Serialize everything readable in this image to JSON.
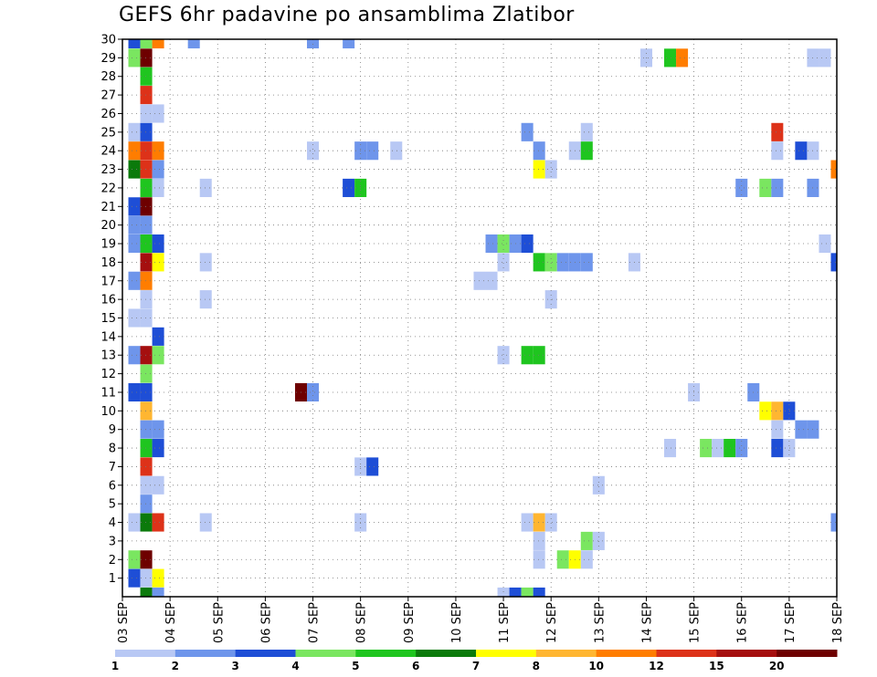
{
  "chart_data": {
    "type": "heatmap",
    "title": "GEFS 6hr padavine po ansamblima Zlatibor",
    "xlabel": "",
    "ylabel": "",
    "x_ticks": [
      "03 SEP",
      "04 SEP",
      "05 SEP",
      "06 SEP",
      "07 SEP",
      "08 SEP",
      "09 SEP",
      "10 SEP",
      "11 SEP",
      "12 SEP",
      "13 SEP",
      "14 SEP",
      "15 SEP",
      "16 SEP",
      "17 SEP",
      "18 SEP"
    ],
    "y_ticks": [
      1,
      2,
      3,
      4,
      5,
      6,
      7,
      8,
      9,
      10,
      11,
      12,
      13,
      14,
      15,
      16,
      17,
      18,
      19,
      20,
      21,
      22,
      23,
      24,
      25,
      26,
      27,
      28,
      29,
      30
    ],
    "xlim": [
      0,
      60
    ],
    "ylim": [
      0,
      30
    ],
    "grid": true,
    "colorbar": {
      "levels": [
        "1",
        "2",
        "3",
        "4",
        "5",
        "6",
        "7",
        "8",
        "10",
        "12",
        "15",
        "20"
      ],
      "colors": [
        "#b8c8f4",
        "#6e95eb",
        "#1e4ed6",
        "#7ae660",
        "#1fc51f",
        "#0b7a0b",
        "#ffff00",
        "#ffb631",
        "#ff7d00",
        "#dd3219",
        "#a50f0f",
        "#6e0000"
      ]
    },
    "cells": [
      [
        30,
        1,
        3
      ],
      [
        30,
        2,
        4
      ],
      [
        30,
        3,
        9
      ],
      [
        30,
        6,
        2
      ],
      [
        30,
        16,
        2
      ],
      [
        30,
        19,
        2
      ],
      [
        29,
        1,
        4
      ],
      [
        29,
        2,
        12
      ],
      [
        29,
        44,
        1
      ],
      [
        29,
        46,
        5
      ],
      [
        29,
        47,
        9
      ],
      [
        29,
        58,
        1
      ],
      [
        29,
        59,
        1
      ],
      [
        28,
        2,
        5
      ],
      [
        27,
        2,
        10
      ],
      [
        26,
        2,
        1
      ],
      [
        26,
        3,
        1
      ],
      [
        25,
        1,
        1
      ],
      [
        25,
        2,
        3
      ],
      [
        25,
        34,
        2
      ],
      [
        25,
        39,
        1
      ],
      [
        25,
        55,
        10
      ],
      [
        24,
        1,
        9
      ],
      [
        24,
        2,
        10
      ],
      [
        24,
        3,
        9
      ],
      [
        24,
        16,
        1
      ],
      [
        24,
        20,
        2
      ],
      [
        24,
        21,
        2
      ],
      [
        24,
        23,
        1
      ],
      [
        24,
        35,
        2
      ],
      [
        24,
        38,
        1
      ],
      [
        24,
        39,
        5
      ],
      [
        24,
        55,
        1
      ],
      [
        24,
        57,
        3
      ],
      [
        24,
        58,
        1
      ],
      [
        23,
        1,
        6
      ],
      [
        23,
        2,
        10
      ],
      [
        23,
        3,
        2
      ],
      [
        23,
        35,
        7
      ],
      [
        23,
        36,
        1
      ],
      [
        23,
        60,
        9
      ],
      [
        22,
        2,
        5
      ],
      [
        22,
        3,
        1
      ],
      [
        22,
        7,
        1
      ],
      [
        22,
        19,
        3
      ],
      [
        22,
        20,
        5
      ],
      [
        22,
        52,
        2
      ],
      [
        22,
        54,
        4
      ],
      [
        22,
        55,
        2
      ],
      [
        22,
        58,
        2
      ],
      [
        21,
        1,
        3
      ],
      [
        21,
        2,
        12
      ],
      [
        20,
        1,
        2
      ],
      [
        20,
        2,
        2
      ],
      [
        19,
        1,
        2
      ],
      [
        19,
        2,
        5
      ],
      [
        19,
        3,
        3
      ],
      [
        19,
        31,
        2
      ],
      [
        19,
        32,
        4
      ],
      [
        19,
        33,
        2
      ],
      [
        19,
        34,
        3
      ],
      [
        19,
        59,
        1
      ],
      [
        18,
        2,
        11
      ],
      [
        18,
        3,
        7
      ],
      [
        18,
        7,
        1
      ],
      [
        18,
        32,
        1
      ],
      [
        18,
        35,
        5
      ],
      [
        18,
        36,
        4
      ],
      [
        18,
        37,
        2
      ],
      [
        18,
        38,
        2
      ],
      [
        18,
        39,
        2
      ],
      [
        18,
        43,
        1
      ],
      [
        18,
        60,
        3
      ],
      [
        17,
        1,
        2
      ],
      [
        17,
        2,
        9
      ],
      [
        17,
        30,
        1
      ],
      [
        17,
        31,
        1
      ],
      [
        16,
        2,
        1
      ],
      [
        16,
        7,
        1
      ],
      [
        16,
        36,
        1
      ],
      [
        15,
        1,
        1
      ],
      [
        15,
        2,
        1
      ],
      [
        14,
        3,
        3
      ],
      [
        13,
        1,
        2
      ],
      [
        13,
        2,
        11
      ],
      [
        13,
        3,
        4
      ],
      [
        13,
        32,
        1
      ],
      [
        13,
        34,
        5
      ],
      [
        13,
        35,
        5
      ],
      [
        12,
        2,
        4
      ],
      [
        11,
        1,
        3
      ],
      [
        11,
        2,
        3
      ],
      [
        11,
        15,
        12
      ],
      [
        11,
        16,
        2
      ],
      [
        11,
        48,
        1
      ],
      [
        11,
        53,
        2
      ],
      [
        10,
        2,
        8
      ],
      [
        10,
        54,
        7
      ],
      [
        10,
        55,
        8
      ],
      [
        10,
        56,
        3
      ],
      [
        9,
        2,
        2
      ],
      [
        9,
        3,
        2
      ],
      [
        9,
        55,
        1
      ],
      [
        9,
        57,
        2
      ],
      [
        9,
        58,
        2
      ],
      [
        8,
        2,
        5
      ],
      [
        8,
        3,
        3
      ],
      [
        8,
        46,
        1
      ],
      [
        8,
        49,
        4
      ],
      [
        8,
        50,
        1
      ],
      [
        8,
        51,
        5
      ],
      [
        8,
        52,
        2
      ],
      [
        8,
        55,
        3
      ],
      [
        8,
        56,
        1
      ],
      [
        7,
        2,
        10
      ],
      [
        7,
        20,
        1
      ],
      [
        7,
        21,
        3
      ],
      [
        6,
        2,
        1
      ],
      [
        6,
        3,
        1
      ],
      [
        6,
        40,
        1
      ],
      [
        5,
        2,
        2
      ],
      [
        4,
        1,
        1
      ],
      [
        4,
        2,
        6
      ],
      [
        4,
        3,
        10
      ],
      [
        4,
        7,
        1
      ],
      [
        4,
        20,
        1
      ],
      [
        4,
        34,
        1
      ],
      [
        4,
        35,
        8
      ],
      [
        4,
        36,
        1
      ],
      [
        4,
        60,
        2
      ],
      [
        3,
        35,
        1
      ],
      [
        3,
        39,
        4
      ],
      [
        3,
        40,
        1
      ],
      [
        2,
        1,
        4
      ],
      [
        2,
        2,
        12
      ],
      [
        2,
        35,
        1
      ],
      [
        2,
        37,
        4
      ],
      [
        2,
        38,
        7
      ],
      [
        2,
        39,
        1
      ],
      [
        1,
        1,
        3
      ],
      [
        1,
        2,
        1
      ],
      [
        1,
        3,
        7
      ],
      [
        0,
        2,
        6
      ],
      [
        0,
        3,
        2
      ],
      [
        0,
        32,
        1
      ],
      [
        0,
        33,
        3
      ],
      [
        0,
        34,
        4
      ],
      [
        0,
        35,
        3
      ]
    ]
  }
}
